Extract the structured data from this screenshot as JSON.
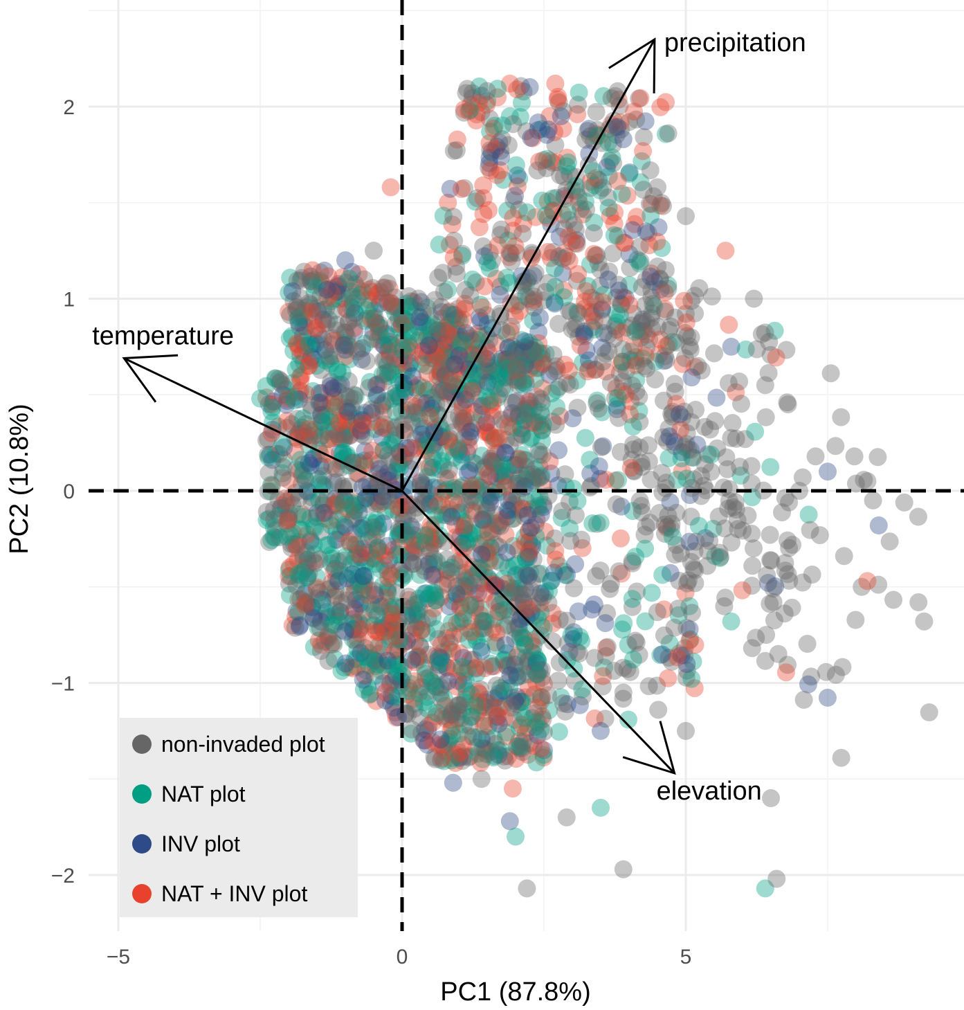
{
  "chart_data": {
    "type": "scatter",
    "subtype": "pca-biplot",
    "title": "",
    "xlabel": "PC1 (87.8%)",
    "ylabel": "PC2 (10.8%)",
    "xlim": [
      -6.5,
      10.0
    ],
    "ylim": [
      -2.3,
      2.55
    ],
    "x_ticks": [
      -5,
      0,
      5
    ],
    "x_tick_labels": [
      "−5",
      "0",
      "5"
    ],
    "y_ticks": [
      -2,
      -1,
      0,
      1,
      2
    ],
    "y_tick_labels": [
      "−2",
      "−1",
      "0",
      "1",
      "2"
    ],
    "grid": true,
    "reference_lines": {
      "x": 0,
      "y": 0,
      "style": "dashed"
    },
    "legend": {
      "placement": "bottom-left",
      "background": "#ebebeb"
    },
    "series": [
      {
        "name": "non-invaded plot",
        "color": "#666666",
        "approx_count": 1400,
        "sample_points": [
          [
            7.0,
            0.0
          ],
          [
            8.2,
            0.05
          ],
          [
            8.3,
            -0.05
          ],
          [
            9.1,
            -0.58
          ],
          [
            9.2,
            -0.68
          ],
          [
            8.1,
            -0.5
          ],
          [
            6.5,
            -1.6
          ],
          [
            5.0,
            -1.25
          ],
          [
            3.9,
            -1.05
          ],
          [
            1.4,
            -1.5
          ],
          [
            2.9,
            -1.7
          ],
          [
            3.9,
            -1.97
          ],
          [
            2.2,
            -2.07
          ],
          [
            6.6,
            -2.02
          ],
          [
            6.4,
            0.55
          ],
          [
            6.8,
            0.45
          ],
          [
            6.2,
            1.0
          ],
          [
            5.0,
            1.43
          ],
          [
            4.5,
            1.58
          ],
          [
            4.0,
            1.92
          ],
          [
            3.8,
            2.08
          ],
          [
            2.7,
            1.8
          ],
          [
            -2.1,
            0.55
          ],
          [
            -1.5,
            0.95
          ],
          [
            -0.5,
            1.25
          ]
        ]
      },
      {
        "name": "NAT plot",
        "color": "#009e83",
        "approx_count": 900,
        "sample_points": [
          [
            -2.5,
            0.48
          ],
          [
            -1.2,
            1.0
          ],
          [
            0.6,
            0.75
          ],
          [
            1.1,
            -1.1
          ],
          [
            3.5,
            -1.65
          ],
          [
            6.4,
            -2.07
          ],
          [
            5.8,
            -0.68
          ],
          [
            5.6,
            -0.35
          ],
          [
            4.0,
            1.65
          ],
          [
            1.9,
            1.95
          ],
          [
            -1.5,
            -0.45
          ],
          [
            -0.5,
            -0.7
          ],
          [
            -1.8,
            -0.2
          ],
          [
            2.0,
            -1.8
          ]
        ]
      },
      {
        "name": "INV plot",
        "color": "#2e4a87",
        "approx_count": 450,
        "sample_points": [
          [
            1.9,
            -1.72
          ],
          [
            7.5,
            0.1
          ],
          [
            8.4,
            -0.18
          ],
          [
            5.8,
            0.75
          ],
          [
            4.3,
            1.35
          ],
          [
            2.8,
            1.95
          ],
          [
            -1.0,
            1.2
          ],
          [
            -2.1,
            0.5
          ],
          [
            3.5,
            -1.25
          ],
          [
            2.5,
            -1.35
          ],
          [
            0.9,
            -1.52
          ]
        ]
      },
      {
        "name": "NAT + INV plot",
        "color": "#e8412e",
        "approx_count": 700,
        "sample_points": [
          [
            1.9,
            2.12
          ],
          [
            2.7,
            2.12
          ],
          [
            -0.2,
            1.58
          ],
          [
            -1.6,
            0.93
          ],
          [
            -2.3,
            0.3
          ],
          [
            0.4,
            -1.3
          ],
          [
            8.2,
            -0.47
          ],
          [
            1.95,
            -1.55
          ],
          [
            2.6,
            1.95
          ],
          [
            5.7,
            1.25
          ],
          [
            -1.3,
            -0.75
          ]
        ]
      }
    ],
    "loadings": [
      {
        "name": "temperature",
        "x": -4.9,
        "y": 0.69
      },
      {
        "name": "precipitation",
        "x": 4.45,
        "y": 2.35
      },
      {
        "name": "elevation",
        "x": 4.8,
        "y": -1.47
      }
    ]
  }
}
